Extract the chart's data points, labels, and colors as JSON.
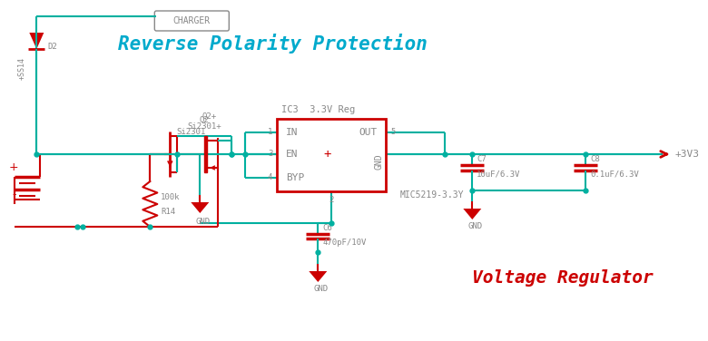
{
  "bg_color": "#ffffff",
  "wire_color": "#00b0a0",
  "red_color": "#cc0000",
  "gray_color": "#888888",
  "blue_color": "#00aacc",
  "title": "Reverse Polarity Protection",
  "subtitle": "Voltage Regulator",
  "charger_label": "CHARGER",
  "ic3_label": "IC3  3.3V Reg",
  "ic_in": "IN",
  "ic_out": "OUT",
  "ic_en": "EN",
  "ic_byp": "BYP",
  "ic_gnd": "GND",
  "ic_plus": "+",
  "ic_model": "MIC5219-3.3Y",
  "q2_label": "Q2",
  "q2_part": "Si2301",
  "r14_label": "R14",
  "r14_val": "100k",
  "d2_label": "D2",
  "ss14_label": "+SS14",
  "c6_label": "C6",
  "c6_val": "470pF/10V",
  "c7_label": "C7",
  "c7_val": "10uF/6.3V",
  "c8_label": "C8",
  "c8_val": "0.1uF/6.3V",
  "gnd_label": "GND",
  "v3v3_label": "+3V3",
  "plus_label": "+",
  "minus_label": "-"
}
